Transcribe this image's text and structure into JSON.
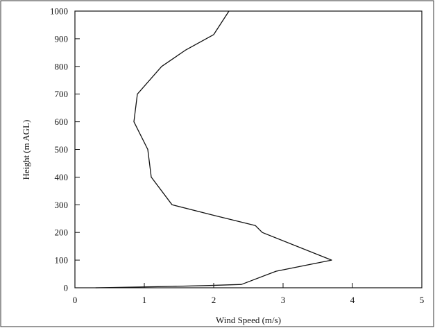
{
  "chart_data": {
    "type": "line",
    "title": "",
    "xlabel": "Wind Speed (m/s)",
    "ylabel": "Height (m AGL)",
    "xlim": [
      0,
      5
    ],
    "ylim": [
      0,
      1000
    ],
    "xticks": [
      "0",
      "1",
      "2",
      "3",
      "4",
      "5"
    ],
    "yticks": [
      "0",
      "100",
      "200",
      "300",
      "400",
      "500",
      "600",
      "700",
      "800",
      "900",
      "1000"
    ],
    "grid": false,
    "legend": "none",
    "series": [
      {
        "x": [
          0.3,
          1.4,
          1.9,
          2.4,
          2.9,
          3.7,
          2.7,
          2.6,
          2.0,
          1.4,
          1.1,
          1.05,
          0.85,
          0.9,
          1.25,
          1.6,
          2.0,
          2.22
        ],
        "y": [
          0,
          5,
          8,
          12,
          60,
          100,
          200,
          225,
          262,
          300,
          400,
          500,
          600,
          700,
          800,
          860,
          915,
          1000
        ],
        "color": "#111111"
      }
    ]
  }
}
